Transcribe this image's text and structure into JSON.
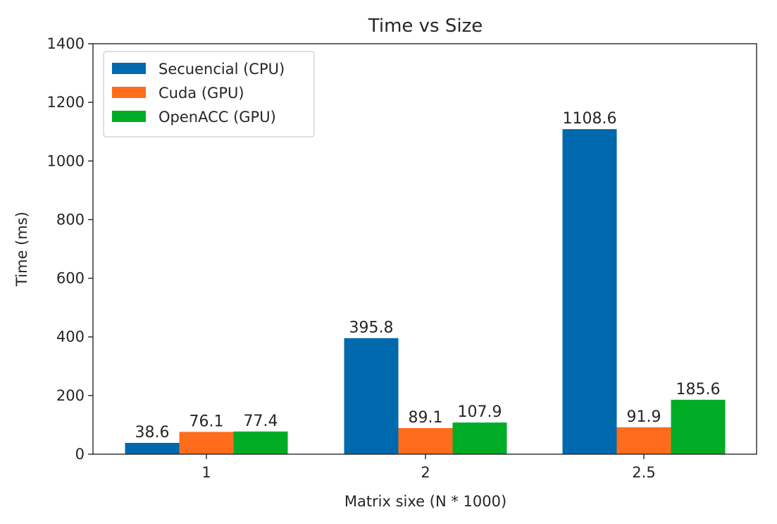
{
  "chart_data": {
    "type": "bar",
    "title": "Time vs Size",
    "xlabel": "Matrix sixe (N * 1000)",
    "ylabel": "Time (ms)",
    "categories": [
      "1",
      "2",
      "2.5"
    ],
    "ylim": [
      0,
      1400
    ],
    "yticks": [
      "0",
      "200",
      "400",
      "600",
      "800",
      "1000",
      "1200",
      "1400"
    ],
    "grid": false,
    "legend_position": "top-left",
    "series": [
      {
        "name": "Secuencial (CPU)",
        "color": "#0068ad",
        "values": [
          38.6,
          395.8,
          1108.6
        ],
        "labels": [
          "38.6",
          "395.8",
          "1108.6"
        ]
      },
      {
        "name": "Cuda (GPU)",
        "color": "#ff6d1c",
        "values": [
          76.1,
          89.1,
          91.9
        ],
        "labels": [
          "76.1",
          "89.1",
          "91.9"
        ]
      },
      {
        "name": "OpenACC (GPU)",
        "color": "#00ac25",
        "values": [
          77.4,
          107.9,
          185.6
        ],
        "labels": [
          "77.4",
          "107.9",
          "185.6"
        ]
      }
    ]
  }
}
